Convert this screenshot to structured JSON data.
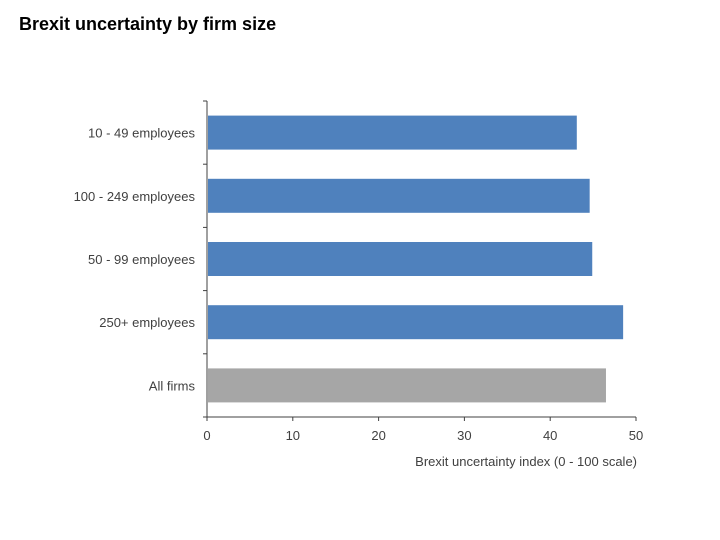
{
  "chart_data": {
    "type": "bar",
    "orientation": "horizontal",
    "title": "Brexit uncertainty by firm size",
    "categories": [
      "10 - 49 employees",
      "100 - 249 employees",
      "50 - 99  employees",
      "250+ employees",
      "All firms"
    ],
    "values": [
      43.1,
      44.6,
      44.9,
      48.5,
      46.5
    ],
    "bar_colors": [
      "#4f81bd",
      "#4f81bd",
      "#4f81bd",
      "#4f81bd",
      "#a6a6a6"
    ],
    "xlabel": "Brexit uncertainty index (0 - 100 scale)",
    "ylabel": "",
    "xlim": [
      0,
      50
    ],
    "xticks": [
      "0",
      "10",
      "20",
      "30",
      "40",
      "50"
    ],
    "grid": false,
    "legend": "none"
  }
}
